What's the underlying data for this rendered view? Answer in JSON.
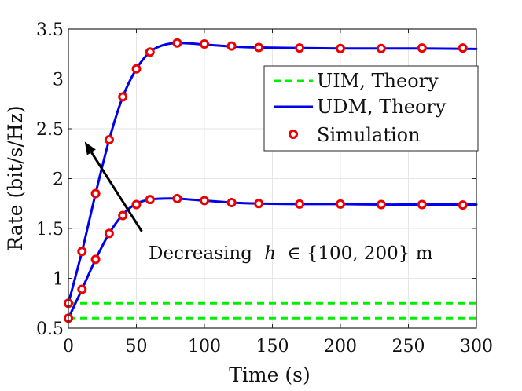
{
  "chart_data": {
    "type": "line",
    "title": "",
    "xlabel": "Time (s)",
    "ylabel": "Rate (bit/s/Hz)",
    "xlim": [
      0,
      300
    ],
    "ylim": [
      0.5,
      3.5
    ],
    "xticks": [
      0,
      50,
      100,
      150,
      200,
      250,
      300
    ],
    "xtick_labels": [
      "0",
      "50",
      "100",
      "150",
      "200",
      "250",
      "300"
    ],
    "yticks": [
      0.5,
      1,
      1.5,
      2,
      2.5,
      3,
      3.5
    ],
    "ytick_labels": [
      "0.5",
      "1",
      "1.5",
      "2",
      "2.5",
      "3",
      "3.5"
    ],
    "grid": true,
    "legend_position": "top-right",
    "legend": [
      {
        "label": "UIM, Theory",
        "style": "dashed",
        "color": "#00ee00"
      },
      {
        "label": "UDM, Theory",
        "style": "solid",
        "color": "#0000ee"
      },
      {
        "label": "Simulation",
        "style": "marker",
        "color": "#ee0000"
      }
    ],
    "series": [
      {
        "name": "UIM, Theory (h=100 m)",
        "kind": "dashed",
        "color": "#00ee00",
        "x": [
          0,
          300
        ],
        "y": [
          0.75,
          0.75
        ]
      },
      {
        "name": "UIM, Theory (h=200 m)",
        "kind": "dashed",
        "color": "#00ee00",
        "x": [
          0,
          300
        ],
        "y": [
          0.6,
          0.6
        ]
      },
      {
        "name": "UDM, Theory (h=100 m)",
        "kind": "solid",
        "color": "#0000ee",
        "x": [
          0,
          10,
          20,
          30,
          40,
          50,
          60,
          70,
          80,
          90,
          100,
          120,
          140,
          170,
          200,
          230,
          260,
          300
        ],
        "y": [
          0.75,
          1.27,
          1.85,
          2.39,
          2.82,
          3.1,
          3.27,
          3.34,
          3.36,
          3.355,
          3.345,
          3.325,
          3.315,
          3.31,
          3.305,
          3.305,
          3.305,
          3.3
        ]
      },
      {
        "name": "UDM, Theory (h=200 m)",
        "kind": "solid",
        "color": "#0000ee",
        "x": [
          0,
          10,
          20,
          30,
          40,
          50,
          60,
          70,
          80,
          90,
          100,
          120,
          140,
          170,
          200,
          230,
          260,
          300
        ],
        "y": [
          0.6,
          0.89,
          1.19,
          1.45,
          1.64,
          1.75,
          1.79,
          1.8,
          1.8,
          1.79,
          1.78,
          1.76,
          1.75,
          1.745,
          1.745,
          1.74,
          1.74,
          1.74
        ]
      },
      {
        "name": "Simulation (h=100 m)",
        "kind": "marker",
        "color": "#ee0000",
        "x": [
          0,
          10,
          20,
          30,
          40,
          50,
          60,
          80,
          100,
          120,
          140,
          170,
          200,
          230,
          260,
          290
        ],
        "y": [
          0.75,
          1.27,
          1.85,
          2.39,
          2.82,
          3.1,
          3.27,
          3.36,
          3.35,
          3.33,
          3.315,
          3.31,
          3.305,
          3.305,
          3.31,
          3.31
        ]
      },
      {
        "name": "Simulation (h=200 m)",
        "kind": "marker",
        "color": "#ee0000",
        "x": [
          0,
          10,
          20,
          30,
          40,
          50,
          60,
          80,
          100,
          120,
          140,
          170,
          200,
          230,
          260,
          290
        ],
        "y": [
          0.6,
          0.89,
          1.19,
          1.45,
          1.63,
          1.74,
          1.79,
          1.8,
          1.78,
          1.76,
          1.75,
          1.745,
          1.745,
          1.74,
          1.74,
          1.735
        ]
      }
    ],
    "annotation": {
      "prefix": "Decreasing",
      "var": "h",
      "suffix": "∈ {100, 200} m",
      "arrow_from": [
        54,
        1.47
      ],
      "arrow_to": [
        12,
        2.37
      ]
    }
  }
}
